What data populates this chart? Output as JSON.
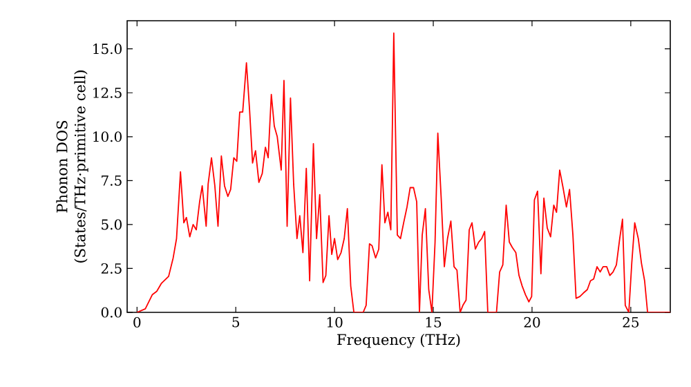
{
  "chart_data": {
    "type": "line",
    "xlabel": "Frequency (THz)",
    "ylabel": "Phonon DOS\n(States/THz·primitive cell)",
    "xlim": [
      -0.5,
      27.0
    ],
    "ylim": [
      0,
      16.6
    ],
    "xticks": [
      0,
      5,
      10,
      15,
      20,
      25
    ],
    "yticks": [
      {
        "value": 0,
        "label": "0.0"
      },
      {
        "value": 2.5,
        "label": "2.5"
      },
      {
        "value": 5,
        "label": "5.0"
      },
      {
        "value": 7.5,
        "label": "7.5"
      },
      {
        "value": 10,
        "label": "10.0"
      },
      {
        "value": 12.5,
        "label": "12.5"
      },
      {
        "value": 15,
        "label": "15.0"
      }
    ],
    "marker": "none",
    "line_style": "solid",
    "series": [
      {
        "color": "#ff0000",
        "x": [
          0,
          0.42,
          0.77,
          1.0,
          1.24,
          1.6,
          1.83,
          2.0,
          2.2,
          2.37,
          2.5,
          2.67,
          2.84,
          3.0,
          3.17,
          3.3,
          3.5,
          3.6,
          3.77,
          3.94,
          4.1,
          4.27,
          4.43,
          4.6,
          4.74,
          4.9,
          5.05,
          5.2,
          5.35,
          5.54,
          5.7,
          5.85,
          6.0,
          6.17,
          6.34,
          6.5,
          6.64,
          6.8,
          6.95,
          7.1,
          7.3,
          7.44,
          7.6,
          7.77,
          7.93,
          8.1,
          8.24,
          8.4,
          8.57,
          8.74,
          8.93,
          9.09,
          9.25,
          9.42,
          9.56,
          9.72,
          9.86,
          10.0,
          10.16,
          10.33,
          10.49,
          10.65,
          10.82,
          10.98,
          11.45,
          11.6,
          11.77,
          11.9,
          12.08,
          12.24,
          12.4,
          12.55,
          12.7,
          12.85,
          13.0,
          13.18,
          13.34,
          13.5,
          13.67,
          13.83,
          14.0,
          14.16,
          14.3,
          14.44,
          14.6,
          14.77,
          14.93,
          15.09,
          15.23,
          15.4,
          15.56,
          15.72,
          15.89,
          16.05,
          16.2,
          16.36,
          16.5,
          16.66,
          16.82,
          16.96,
          17.13,
          17.3,
          17.45,
          17.6,
          17.76,
          18.2,
          18.36,
          18.52,
          18.69,
          18.85,
          19.0,
          19.18,
          19.34,
          19.5,
          19.67,
          19.84,
          19.98,
          20.12,
          20.28,
          20.45,
          20.6,
          20.77,
          20.94,
          21.1,
          21.24,
          21.4,
          21.57,
          21.74,
          21.9,
          22.07,
          22.23,
          22.42,
          22.6,
          22.8,
          22.96,
          23.12,
          23.29,
          23.45,
          23.6,
          23.78,
          23.94,
          24.1,
          24.27,
          24.44,
          24.58,
          24.72,
          24.9,
          25.05,
          25.2,
          25.38,
          25.54,
          25.7,
          25.85,
          27.0
        ],
        "values": [
          0,
          0.2,
          1.0,
          1.2,
          1.66,
          2.05,
          3.1,
          4.2,
          8.0,
          5.1,
          5.4,
          4.3,
          5.0,
          4.7,
          6.3,
          7.2,
          4.9,
          7.3,
          8.8,
          7.2,
          4.9,
          8.9,
          7.2,
          6.6,
          7.0,
          8.8,
          8.6,
          11.4,
          11.4,
          14.2,
          11.5,
          8.5,
          9.2,
          7.4,
          7.9,
          9.4,
          8.8,
          12.4,
          10.6,
          10.0,
          8.1,
          13.2,
          4.9,
          12.2,
          7.3,
          4.2,
          5.5,
          3.4,
          8.2,
          1.8,
          9.6,
          4.2,
          6.7,
          1.7,
          2.1,
          5.5,
          3.3,
          4.2,
          3.0,
          3.4,
          4.2,
          5.9,
          1.5,
          0,
          0,
          0.4,
          3.9,
          3.8,
          3.1,
          3.6,
          8.4,
          5.1,
          5.7,
          4.7,
          15.9,
          4.4,
          4.2,
          5.1,
          6.0,
          7.1,
          7.1,
          6.3,
          0,
          4.4,
          5.9,
          1.3,
          0,
          4.0,
          10.2,
          6.5,
          2.6,
          4.2,
          5.2,
          2.6,
          2.4,
          0,
          0.4,
          0.7,
          4.7,
          5.1,
          3.6,
          4.0,
          4.2,
          4.6,
          0,
          0,
          2.3,
          2.7,
          6.1,
          4.0,
          3.7,
          3.4,
          2.1,
          1.5,
          1.0,
          0.6,
          0.9,
          6.4,
          6.9,
          2.2,
          6.5,
          4.8,
          4.3,
          6.1,
          5.7,
          8.1,
          7.1,
          6.0,
          7.0,
          4.4,
          0.8,
          0.9,
          1.1,
          1.3,
          1.8,
          1.9,
          2.6,
          2.3,
          2.6,
          2.6,
          2.1,
          2.3,
          2.7,
          4.2,
          5.3,
          0.4,
          0,
          2.8,
          5.1,
          4.2,
          2.8,
          1.8,
          0,
          0
        ]
      }
    ]
  }
}
